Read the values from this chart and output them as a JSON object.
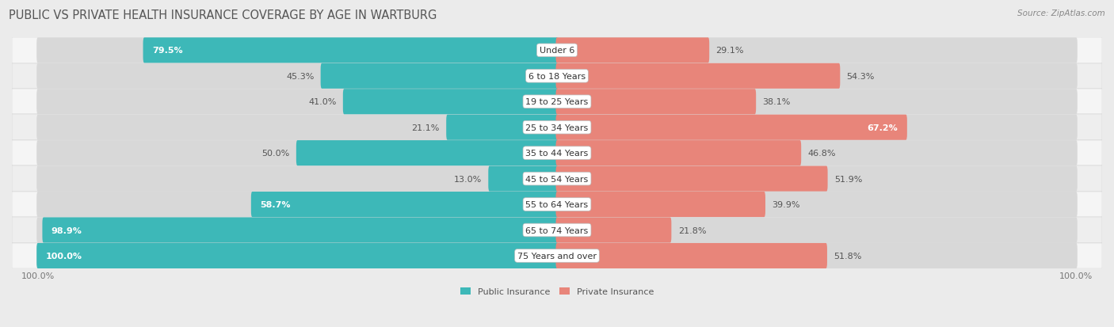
{
  "title": "PUBLIC VS PRIVATE HEALTH INSURANCE COVERAGE BY AGE IN WARTBURG",
  "source": "Source: ZipAtlas.com",
  "categories": [
    "Under 6",
    "6 to 18 Years",
    "19 to 25 Years",
    "25 to 34 Years",
    "35 to 44 Years",
    "45 to 54 Years",
    "55 to 64 Years",
    "65 to 74 Years",
    "75 Years and over"
  ],
  "public_values": [
    79.5,
    45.3,
    41.0,
    21.1,
    50.0,
    13.0,
    58.7,
    98.9,
    100.0
  ],
  "private_values": [
    29.1,
    54.3,
    38.1,
    67.2,
    46.8,
    51.9,
    39.9,
    21.8,
    51.8
  ],
  "public_color": "#3db8b8",
  "private_color": "#e8857a",
  "private_color_strong": "#e06b5e",
  "bg_color": "#ebebeb",
  "row_bg_light": "#f5f5f5",
  "row_bg_dark": "#eeeeee",
  "bar_track_color": "#d8d8d8",
  "max_value": 100.0,
  "legend_public": "Public Insurance",
  "legend_private": "Private Insurance",
  "title_fontsize": 10.5,
  "label_fontsize": 8.0,
  "value_fontsize": 8.0,
  "source_fontsize": 7.5
}
